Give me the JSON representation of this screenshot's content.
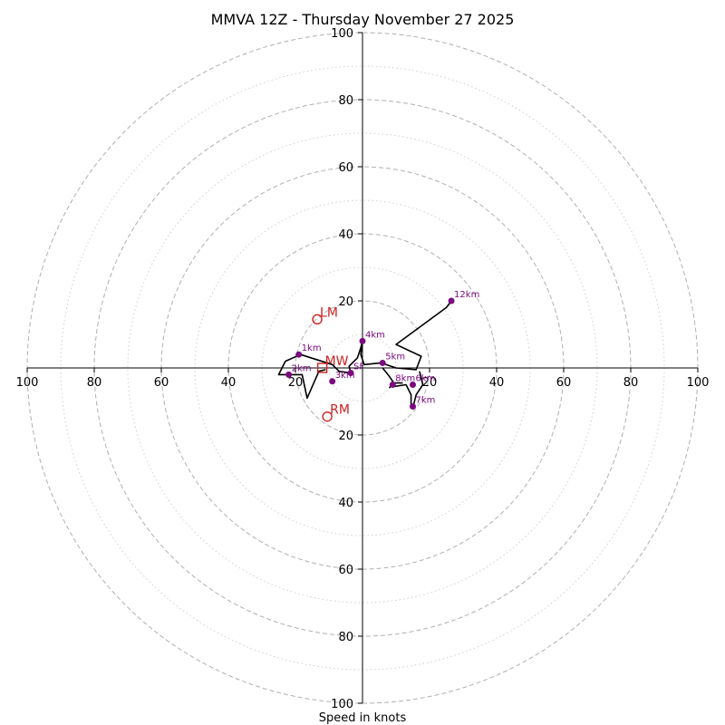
{
  "chart_data": {
    "type": "hodograph",
    "title": "MMVA 12Z - Thursday November 27 2025",
    "xlabel": "Speed in knots",
    "rings_major": [
      20,
      40,
      60,
      80,
      100
    ],
    "rings_minor": [
      10,
      30,
      50,
      70,
      90
    ],
    "max_speed": 100,
    "ticks": {
      "x_left": [
        "100",
        "80",
        "60",
        "40",
        "20"
      ],
      "x_right": [
        "20",
        "40",
        "60",
        "80",
        "100"
      ],
      "y_up": [
        "20",
        "40",
        "60",
        "80",
        "100"
      ],
      "y_down": [
        "20",
        "40",
        "60",
        "80",
        "100"
      ]
    },
    "wind_trace": [
      [
        -11,
        -0.5
      ],
      [
        -13,
        -1
      ],
      [
        -16.5,
        -9
      ],
      [
        -18,
        -2
      ],
      [
        -25,
        -2
      ],
      [
        -23,
        2
      ],
      [
        -18.5,
        4
      ],
      [
        -9,
        1
      ],
      [
        -7,
        -1
      ],
      [
        -3.5,
        -1.5
      ],
      [
        -4,
        0.5
      ],
      [
        -1.5,
        3
      ],
      [
        -0.5,
        6
      ],
      [
        0,
        8
      ],
      [
        -0.5,
        4
      ],
      [
        0.5,
        1
      ],
      [
        5.5,
        1.5
      ],
      [
        10,
        0
      ],
      [
        16,
        -0.5
      ],
      [
        17.5,
        3.5
      ],
      [
        10,
        7
      ],
      [
        25,
        18
      ],
      [
        26.5,
        20
      ]
    ],
    "wind_trace_2": [
      [
        6,
        0
      ],
      [
        8,
        -2.5
      ],
      [
        9,
        -4
      ],
      [
        9.5,
        -5.5
      ],
      [
        13,
        -5
      ],
      [
        14.5,
        -8
      ],
      [
        14.5,
        -11
      ],
      [
        15,
        -12
      ],
      [
        16,
        -8
      ],
      [
        18,
        -5
      ],
      [
        17,
        -1
      ]
    ],
    "wind_trace_3": [
      [
        8,
        -6
      ],
      [
        9,
        -4.5
      ],
      [
        12,
        -4.5
      ]
    ],
    "height_points": [
      {
        "label": "1km",
        "x": -19,
        "y": 4
      },
      {
        "label": "2km",
        "x": -22,
        "y": -2
      },
      {
        "label": "3km",
        "x": -9,
        "y": -4
      },
      {
        "label": "4km",
        "x": 0,
        "y": 8
      },
      {
        "label": "5km",
        "x": 6,
        "y": 1.5
      },
      {
        "label": "6km",
        "x": 15,
        "y": -5
      },
      {
        "label": "7km",
        "x": 15,
        "y": -11.5
      },
      {
        "label": "8km",
        "x": 9,
        "y": -5
      },
      {
        "label": "12km",
        "x": 26.5,
        "y": 20
      },
      {
        "label": "SF",
        "x": -3.5,
        "y": -1.5
      }
    ],
    "motions": [
      {
        "label": "LM",
        "x": -13.5,
        "y": 14.5,
        "marker": "circle"
      },
      {
        "label": "MW",
        "x": -12,
        "y": 0,
        "marker": "square"
      },
      {
        "label": "RM",
        "x": -10.5,
        "y": -14.5,
        "marker": "circle"
      }
    ],
    "colors": {
      "trace": "#000000",
      "point": "#7b0a80",
      "motion": "#cc2222",
      "grid": "#b0b0b0",
      "axis": "#000000"
    }
  }
}
